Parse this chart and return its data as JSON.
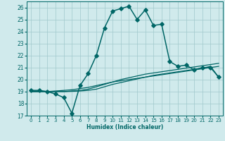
{
  "title": "",
  "xlabel": "Humidex (Indice chaleur)",
  "background_color": "#d0eaec",
  "grid_color": "#a0c8cc",
  "line_color": "#006666",
  "xlim": [
    -0.5,
    23.5
  ],
  "ylim": [
    17,
    26.5
  ],
  "xticks": [
    0,
    1,
    2,
    3,
    4,
    5,
    6,
    7,
    8,
    9,
    10,
    11,
    12,
    13,
    14,
    15,
    16,
    17,
    18,
    19,
    20,
    21,
    22,
    23
  ],
  "yticks": [
    17,
    18,
    19,
    20,
    21,
    22,
    23,
    24,
    25,
    26
  ],
  "series": [
    {
      "x": [
        0,
        1,
        2,
        3,
        4,
        5,
        6,
        7,
        8,
        9,
        10,
        11,
        12,
        13,
        14,
        15,
        16,
        17,
        18,
        19,
        20,
        21,
        22,
        23
      ],
      "y": [
        19.1,
        19.1,
        19.0,
        18.8,
        18.5,
        17.2,
        19.5,
        20.5,
        22.0,
        24.3,
        25.7,
        25.9,
        26.1,
        25.0,
        25.8,
        24.5,
        24.6,
        21.5,
        21.1,
        21.2,
        20.8,
        21.0,
        21.0,
        20.2
      ],
      "marker": "D",
      "markersize": 2.8,
      "linewidth": 1.1
    },
    {
      "x": [
        0,
        1,
        2,
        3,
        4,
        5,
        6,
        7,
        8,
        9,
        10,
        11,
        12,
        13,
        14,
        15,
        16,
        17,
        18,
        19,
        20,
        21,
        22,
        23
      ],
      "y": [
        19.0,
        19.0,
        19.0,
        19.05,
        19.1,
        19.15,
        19.25,
        19.35,
        19.5,
        19.65,
        19.8,
        19.9,
        20.0,
        20.1,
        20.2,
        20.3,
        20.4,
        20.5,
        20.6,
        20.7,
        20.8,
        20.9,
        21.0,
        21.1
      ],
      "marker": null,
      "linewidth": 0.9
    },
    {
      "x": [
        0,
        1,
        2,
        3,
        4,
        5,
        6,
        7,
        8,
        9,
        10,
        11,
        12,
        13,
        14,
        15,
        16,
        17,
        18,
        19,
        20,
        21,
        22,
        23
      ],
      "y": [
        19.0,
        19.0,
        19.0,
        19.0,
        19.0,
        19.05,
        19.1,
        19.2,
        19.4,
        19.6,
        19.8,
        20.0,
        20.15,
        20.3,
        20.45,
        20.55,
        20.65,
        20.75,
        20.85,
        20.95,
        21.05,
        21.15,
        21.25,
        21.35
      ],
      "marker": null,
      "linewidth": 0.9
    },
    {
      "x": [
        0,
        1,
        2,
        3,
        4,
        5,
        6,
        7,
        8,
        9,
        10,
        11,
        12,
        13,
        14,
        15,
        16,
        17,
        18,
        19,
        20,
        21,
        22,
        23
      ],
      "y": [
        19.0,
        19.0,
        19.0,
        19.0,
        19.0,
        19.02,
        19.05,
        19.1,
        19.2,
        19.4,
        19.6,
        19.75,
        19.9,
        20.05,
        20.2,
        20.35,
        20.45,
        20.55,
        20.65,
        20.75,
        20.85,
        20.95,
        21.1,
        20.2
      ],
      "marker": null,
      "linewidth": 0.9
    }
  ]
}
